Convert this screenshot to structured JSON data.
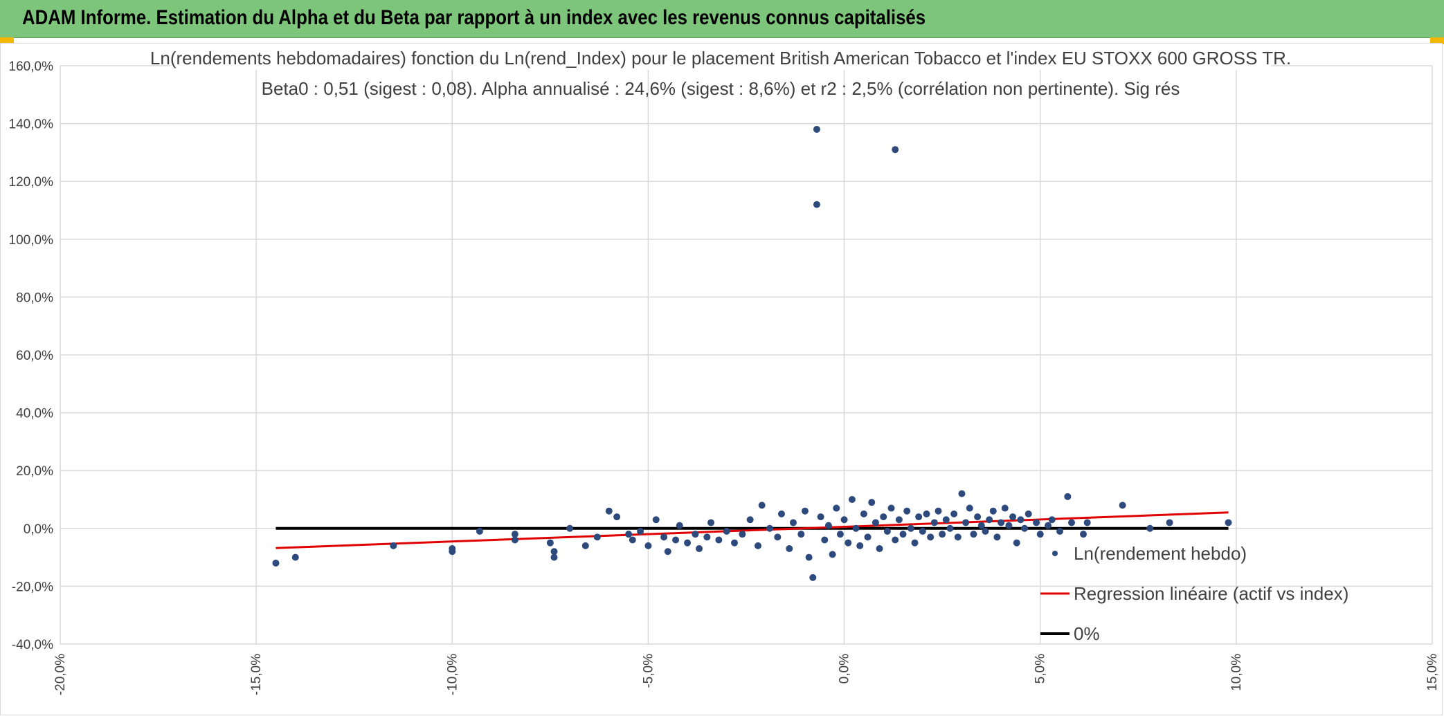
{
  "header": {
    "title": "ADAM Informe. Estimation du Alpha et du Beta par rapport à un index avec les revenus connus capitalisés"
  },
  "colors": {
    "banner": "#7dc57a",
    "points": "#2e4a7d",
    "regression": "#e00000",
    "zero_line": "#000000",
    "grid": "#d9d9d9"
  },
  "chart_data": {
    "type": "scatter",
    "title": "Ln(rendements hebdomadaires) fonction du Ln(rend_Index) pour le placement British American Tobacco  et l'index EU STOXX 600 GROSS TR.",
    "subtitle": "Beta0 : 0,51 (sigest : 0,08). Alpha annualisé : 24,6% (sigest : 8,6%) et r2 : 2,5% (corrélation non pertinente). Sig rés",
    "xlim": [
      -0.2,
      0.15
    ],
    "ylim": [
      -0.4,
      1.6
    ],
    "x_ticks": [
      -0.2,
      -0.15,
      -0.1,
      -0.05,
      0.0,
      0.05,
      0.1,
      0.15
    ],
    "x_tick_labels": [
      "-20,0%",
      "-15,0%",
      "-10,0%",
      "-5,0%",
      "0,0%",
      "5,0%",
      "10,0%",
      "15,0%"
    ],
    "y_ticks": [
      1.6,
      1.4,
      1.2,
      1.0,
      0.8,
      0.6,
      0.4,
      0.2,
      0.0,
      -0.2,
      -0.4
    ],
    "y_tick_labels": [
      "160,0%",
      "140,0%",
      "120,0%",
      "100,0%",
      "80,0%",
      "60,0%",
      "40,0%",
      "20,0%",
      "0,0%",
      "-20,0%",
      "-40,0%"
    ],
    "grid": true,
    "legend_position": "bottom-right",
    "series": [
      {
        "name": "Ln(rendement hebdo)",
        "kind": "points",
        "points": [
          [
            -0.007,
            1.38
          ],
          [
            0.013,
            1.31
          ],
          [
            -0.007,
            1.12
          ],
          [
            -0.145,
            -0.12
          ],
          [
            -0.14,
            -0.1
          ],
          [
            -0.115,
            -0.06
          ],
          [
            -0.1,
            -0.07
          ],
          [
            -0.1,
            -0.08
          ],
          [
            -0.093,
            -0.01
          ],
          [
            -0.084,
            -0.04
          ],
          [
            -0.084,
            -0.02
          ],
          [
            -0.074,
            -0.08
          ],
          [
            -0.074,
            -0.1
          ],
          [
            -0.075,
            -0.05
          ],
          [
            -0.07,
            0.0
          ],
          [
            -0.066,
            -0.06
          ],
          [
            -0.063,
            -0.03
          ],
          [
            -0.06,
            0.06
          ],
          [
            -0.058,
            0.04
          ],
          [
            -0.055,
            -0.02
          ],
          [
            -0.054,
            -0.04
          ],
          [
            -0.052,
            -0.01
          ],
          [
            -0.05,
            -0.06
          ],
          [
            -0.048,
            0.03
          ],
          [
            -0.046,
            -0.03
          ],
          [
            -0.045,
            -0.08
          ],
          [
            -0.043,
            -0.04
          ],
          [
            -0.042,
            0.01
          ],
          [
            -0.04,
            -0.05
          ],
          [
            -0.038,
            -0.02
          ],
          [
            -0.037,
            -0.07
          ],
          [
            -0.035,
            -0.03
          ],
          [
            -0.034,
            0.02
          ],
          [
            -0.032,
            -0.04
          ],
          [
            -0.03,
            -0.01
          ],
          [
            -0.028,
            -0.05
          ],
          [
            -0.026,
            -0.02
          ],
          [
            -0.024,
            0.03
          ],
          [
            -0.022,
            -0.06
          ],
          [
            -0.021,
            0.08
          ],
          [
            -0.019,
            0.0
          ],
          [
            -0.017,
            -0.03
          ],
          [
            -0.016,
            0.05
          ],
          [
            -0.014,
            -0.07
          ],
          [
            -0.013,
            0.02
          ],
          [
            -0.011,
            -0.02
          ],
          [
            -0.01,
            0.06
          ],
          [
            -0.009,
            -0.1
          ],
          [
            -0.008,
            -0.17
          ],
          [
            -0.006,
            0.04
          ],
          [
            -0.005,
            -0.04
          ],
          [
            -0.004,
            0.01
          ],
          [
            -0.003,
            -0.09
          ],
          [
            -0.002,
            0.07
          ],
          [
            -0.001,
            -0.02
          ],
          [
            0.0,
            0.03
          ],
          [
            0.001,
            -0.05
          ],
          [
            0.002,
            0.1
          ],
          [
            0.003,
            0.0
          ],
          [
            0.004,
            -0.06
          ],
          [
            0.005,
            0.05
          ],
          [
            0.006,
            -0.03
          ],
          [
            0.007,
            0.09
          ],
          [
            0.008,
            0.02
          ],
          [
            0.009,
            -0.07
          ],
          [
            0.01,
            0.04
          ],
          [
            0.011,
            -0.01
          ],
          [
            0.012,
            0.07
          ],
          [
            0.013,
            -0.04
          ],
          [
            0.014,
            0.03
          ],
          [
            0.015,
            -0.02
          ],
          [
            0.016,
            0.06
          ],
          [
            0.017,
            0.0
          ],
          [
            0.018,
            -0.05
          ],
          [
            0.019,
            0.04
          ],
          [
            0.02,
            -0.01
          ],
          [
            0.021,
            0.05
          ],
          [
            0.022,
            -0.03
          ],
          [
            0.023,
            0.02
          ],
          [
            0.024,
            0.06
          ],
          [
            0.025,
            -0.02
          ],
          [
            0.026,
            0.03
          ],
          [
            0.027,
            0.0
          ],
          [
            0.028,
            0.05
          ],
          [
            0.029,
            -0.03
          ],
          [
            0.03,
            0.12
          ],
          [
            0.031,
            0.02
          ],
          [
            0.032,
            0.07
          ],
          [
            0.033,
            -0.02
          ],
          [
            0.034,
            0.04
          ],
          [
            0.035,
            0.01
          ],
          [
            0.036,
            -0.01
          ],
          [
            0.037,
            0.03
          ],
          [
            0.038,
            0.06
          ],
          [
            0.039,
            -0.03
          ],
          [
            0.04,
            0.02
          ],
          [
            0.041,
            0.07
          ],
          [
            0.042,
            0.01
          ],
          [
            0.043,
            0.04
          ],
          [
            0.044,
            -0.05
          ],
          [
            0.045,
            0.03
          ],
          [
            0.046,
            0.0
          ],
          [
            0.047,
            0.05
          ],
          [
            0.049,
            0.02
          ],
          [
            0.05,
            -0.02
          ],
          [
            0.052,
            0.01
          ],
          [
            0.053,
            0.03
          ],
          [
            0.055,
            -0.01
          ],
          [
            0.057,
            0.11
          ],
          [
            0.058,
            0.02
          ],
          [
            0.061,
            -0.02
          ],
          [
            0.062,
            0.02
          ],
          [
            0.071,
            0.08
          ],
          [
            0.078,
            0.0
          ],
          [
            0.083,
            0.02
          ],
          [
            0.098,
            0.02
          ]
        ]
      },
      {
        "name": "Regression linéaire (actif vs index)",
        "kind": "line",
        "points": [
          [
            -0.145,
            -0.068
          ],
          [
            0.098,
            0.055
          ]
        ]
      },
      {
        "name": "0%",
        "kind": "line",
        "points": [
          [
            -0.145,
            0.0
          ],
          [
            0.098,
            0.0
          ]
        ]
      }
    ]
  }
}
